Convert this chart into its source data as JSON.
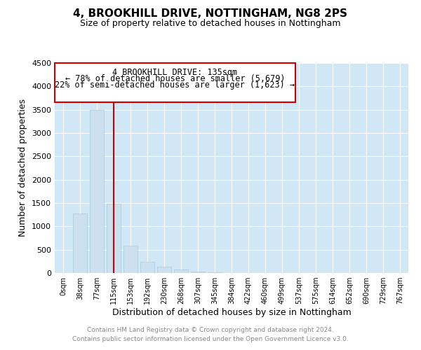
{
  "title": "4, BROOKHILL DRIVE, NOTTINGHAM, NG8 2PS",
  "subtitle": "Size of property relative to detached houses in Nottingham",
  "xlabel": "Distribution of detached houses by size in Nottingham",
  "ylabel": "Number of detached properties",
  "footer_line1": "Contains HM Land Registry data © Crown copyright and database right 2024.",
  "footer_line2": "Contains public sector information licensed under the Open Government Licence v3.0.",
  "annotation_line1": "4 BROOKHILL DRIVE: 135sqm",
  "annotation_line2": "← 78% of detached houses are smaller (5,679)",
  "annotation_line3": "22% of semi-detached houses are larger (1,623) →",
  "bar_color": "#cce0f0",
  "bar_edge_color": "#aaccdd",
  "vline_color": "#cc0000",
  "annotation_box_edgecolor": "#cc0000",
  "annotation_box_facecolor": "#ffffff",
  "background_color": "#ffffff",
  "grid_color": "#d0e8f5",
  "categories": [
    "0sqm",
    "38sqm",
    "77sqm",
    "115sqm",
    "153sqm",
    "192sqm",
    "230sqm",
    "268sqm",
    "307sqm",
    "345sqm",
    "384sqm",
    "422sqm",
    "460sqm",
    "499sqm",
    "537sqm",
    "575sqm",
    "614sqm",
    "652sqm",
    "690sqm",
    "729sqm",
    "767sqm"
  ],
  "values": [
    0,
    1280,
    3500,
    1480,
    580,
    240,
    130,
    70,
    30,
    10,
    5,
    2,
    1,
    0,
    0,
    0,
    0,
    0,
    0,
    0,
    0
  ],
  "vline_x": 3.0,
  "ylim": [
    0,
    4500
  ],
  "yticks": [
    0,
    500,
    1000,
    1500,
    2000,
    2500,
    3000,
    3500,
    4000,
    4500
  ]
}
